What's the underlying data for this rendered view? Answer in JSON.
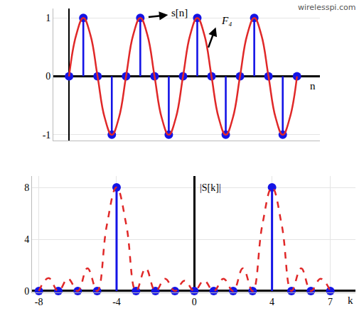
{
  "source": "wirelesspi.com",
  "chart_data": [
    {
      "type": "stem",
      "xlabel": "n",
      "x": [
        0,
        1,
        2,
        3,
        4,
        5,
        6,
        7,
        8,
        9,
        10,
        11,
        12,
        13,
        14,
        15,
        16
      ],
      "series": [
        {
          "name": "s[n]",
          "type": "stem",
          "marker": "circle",
          "color": "#1414e6",
          "values": [
            0,
            1,
            0,
            -1,
            0,
            1,
            0,
            -1,
            0,
            1,
            0,
            -1,
            0,
            1,
            0,
            -1,
            0
          ]
        },
        {
          "name": "F₄",
          "type": "line",
          "line_style": "solid",
          "color": "#e02828",
          "x": [
            0,
            0.5,
            1,
            1.5,
            2,
            2.5,
            3,
            3.5,
            4,
            4.5,
            5,
            5.5,
            6,
            6.5,
            7,
            7.5,
            8,
            8.5,
            9,
            9.5,
            10,
            10.5,
            11,
            11.5,
            12,
            12.5,
            13,
            13.5,
            14,
            14.5,
            15,
            15.5,
            16
          ],
          "values": [
            0,
            0.707,
            1,
            0.707,
            0,
            -0.707,
            -1,
            -0.707,
            0,
            0.707,
            1,
            0.707,
            0,
            -0.707,
            -1,
            -0.707,
            0,
            0.707,
            1,
            0.707,
            0,
            -0.707,
            -1,
            -0.707,
            0,
            0.707,
            1,
            0.707,
            0,
            -0.707,
            -1,
            -0.707,
            0
          ]
        }
      ],
      "xlim": [
        -1.1,
        17.6
      ],
      "ylim": [
        -1.1,
        1.16
      ],
      "yticks": [
        -1,
        0,
        1
      ],
      "tick_labels": "y",
      "grid": true
    },
    {
      "type": "stem",
      "xlabel": "k",
      "ylabel": "|S[k]|",
      "x": [
        -8,
        -7,
        -6,
        -5,
        -4,
        -3,
        -2,
        -1,
        0,
        1,
        2,
        3,
        4,
        5,
        6,
        7
      ],
      "series": [
        {
          "type": "stem",
          "marker": "circle",
          "color": "#1414e6",
          "values": [
            0,
            0,
            0,
            0,
            8,
            0,
            0,
            0,
            0,
            0,
            0,
            0,
            8,
            0,
            0,
            0
          ]
        },
        {
          "type": "line",
          "line_style": "dashed",
          "color": "#e02828",
          "x": [
            -8,
            -7.5,
            -7,
            -6.5,
            -6,
            -5.5,
            -5,
            -4.5,
            -4,
            -3.5,
            -3,
            -2.5,
            -2,
            -1.5,
            -1,
            -0.5,
            0,
            0.5,
            1,
            1.5,
            2,
            2.5,
            3,
            3.5,
            4,
            4.5,
            5,
            5.5,
            6,
            6.5,
            7
          ],
          "values": [
            0,
            1.0,
            0,
            0.95,
            0,
            1.75,
            0,
            5.1,
            8,
            5.1,
            0,
            1.75,
            0,
            0.95,
            0,
            0.8,
            0,
            0.8,
            0,
            0.95,
            0,
            1.75,
            0,
            5.1,
            8,
            5.1,
            0,
            1.75,
            0,
            0.95,
            0
          ]
        }
      ],
      "xlim": [
        -8.35,
        8.3
      ],
      "xticks": [
        -8,
        -4,
        0,
        4,
        7
      ],
      "ylim": [
        -0.11,
        8.88
      ],
      "yticks": [
        0,
        4,
        8
      ],
      "grid": true
    }
  ]
}
